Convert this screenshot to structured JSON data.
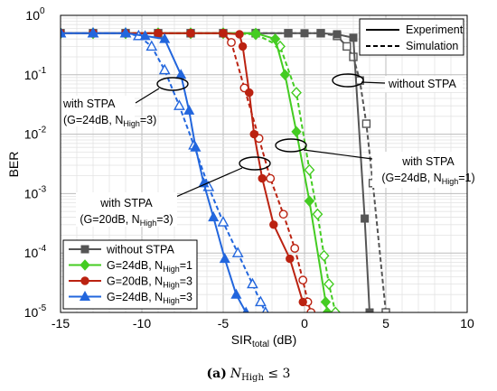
{
  "chart_data": {
    "type": "line",
    "xlabel": "SIR",
    "xlabel_sub": "total",
    "xlabel_unit": " (dB)",
    "ylabel": "BER",
    "xlim": [
      -15,
      10
    ],
    "ylim_log10": [
      -5,
      0
    ],
    "log_y": true,
    "grid": true,
    "x_ticks": [
      "-15",
      "-10",
      "-5",
      "0",
      "5",
      "10"
    ],
    "y_ticks": [
      {
        "base": "10",
        "exp": "0"
      },
      {
        "base": "10",
        "exp": "-1"
      },
      {
        "base": "10",
        "exp": "-2"
      },
      {
        "base": "10",
        "exp": "-3"
      },
      {
        "base": "10",
        "exp": "-4"
      },
      {
        "base": "10",
        "exp": "-5"
      }
    ],
    "style_legend": {
      "position": "top-right",
      "entries": [
        {
          "label": "Experiment",
          "dash": "solid"
        },
        {
          "label": "Simulation",
          "dash": "dashed"
        }
      ]
    },
    "legend_position": "bottom-left",
    "series": [
      {
        "key": "without",
        "color": "#555555",
        "marker": "square",
        "experiment": {
          "x": [
            -15,
            -13,
            -11,
            -9,
            -7,
            -5,
            -3,
            -1,
            0,
            1,
            2,
            3,
            3.7,
            4
          ],
          "y": [
            0.5,
            0.5,
            0.5,
            0.5,
            0.5,
            0.5,
            0.5,
            0.5,
            0.5,
            0.5,
            0.48,
            0.42,
            0.00038,
            1e-05
          ]
        },
        "simulation": {
          "x": [
            -15,
            -13,
            -11,
            -9,
            -7,
            -5,
            -3,
            -1,
            1,
            2,
            2.6,
            3,
            3.4,
            3.8,
            4.2,
            5
          ],
          "y": [
            0.5,
            0.5,
            0.5,
            0.5,
            0.5,
            0.5,
            0.5,
            0.5,
            0.5,
            0.45,
            0.3,
            0.2,
            0.08,
            0.015,
            0.0015,
            1e-05
          ]
        }
      },
      {
        "key": "g24n1",
        "color": "#44cc22",
        "marker": "diamond",
        "experiment": {
          "x": [
            -15,
            -13,
            -11,
            -9,
            -7,
            -5,
            -3,
            -1.8,
            -1.2,
            -0.5,
            0.3,
            1.3,
            1.4
          ],
          "y": [
            0.5,
            0.5,
            0.5,
            0.5,
            0.5,
            0.5,
            0.5,
            0.4,
            0.1,
            0.011,
            0.00075,
            1.5e-05,
            1e-05
          ]
        },
        "simulation": {
          "x": [
            -15,
            -13,
            -11,
            -9,
            -7,
            -5,
            -3,
            -1.5,
            -0.5,
            0.3,
            0.8,
            1.2,
            1.5,
            1.9
          ],
          "y": [
            0.5,
            0.5,
            0.5,
            0.5,
            0.5,
            0.5,
            0.48,
            0.3,
            0.05,
            0.0025,
            0.00045,
            9e-05,
            3e-05,
            1e-05
          ]
        }
      },
      {
        "key": "g20n3",
        "color": "#bb2211",
        "marker": "circle",
        "experiment": {
          "x": [
            -15,
            -13,
            -11,
            -9,
            -7,
            -5,
            -4,
            -3.8,
            -3.4,
            -3.1,
            -2.6,
            -1.9,
            -0.9,
            -0.1
          ],
          "y": [
            0.5,
            0.5,
            0.5,
            0.5,
            0.5,
            0.5,
            0.48,
            0.3,
            0.05,
            0.01,
            0.0018,
            0.0003,
            8e-05,
            1.5e-05
          ]
        },
        "simulation": {
          "x": [
            -15,
            -13,
            -11,
            -9,
            -7,
            -5,
            -4.5,
            -3.7,
            -2.8,
            -2.1,
            -1.3,
            -0.6,
            -0.1,
            0.2,
            0.4
          ],
          "y": [
            0.5,
            0.5,
            0.5,
            0.5,
            0.5,
            0.5,
            0.35,
            0.06,
            0.0085,
            0.0018,
            0.00045,
            0.00012,
            3.5e-05,
            1.5e-05,
            1e-05
          ]
        }
      },
      {
        "key": "g24n3",
        "color": "#2266dd",
        "marker": "triangle",
        "experiment": {
          "x": [
            -15,
            -13,
            -11,
            -9.8,
            -8.6,
            -7.6,
            -7.1,
            -6.7,
            -6.2,
            -5.6,
            -4.9,
            -4.2,
            -3.6
          ],
          "y": [
            0.5,
            0.5,
            0.5,
            0.45,
            0.4,
            0.1,
            0.025,
            0.006,
            0.0015,
            0.0004,
            8e-05,
            2e-05,
            1e-05
          ]
        },
        "simulation": {
          "x": [
            -15,
            -13,
            -11,
            -10.2,
            -9.4,
            -8.6,
            -7.7,
            -6.8,
            -5.9,
            -5,
            -4.1,
            -3.2,
            -2.7,
            -2.4
          ],
          "y": [
            0.5,
            0.5,
            0.5,
            0.45,
            0.3,
            0.12,
            0.03,
            0.0065,
            0.0013,
            0.00033,
            0.0001,
            3e-05,
            1.5e-05,
            1e-05
          ]
        }
      }
    ],
    "legend": [
      {
        "key": "without",
        "label": "without STPA",
        "label_sub": "",
        "label_tail": ""
      },
      {
        "key": "g24n1",
        "label": "G=24dB, N",
        "label_sub": "High",
        "label_tail": "=1"
      },
      {
        "key": "g20n3",
        "label": "G=20dB, N",
        "label_sub": "High",
        "label_tail": "=3"
      },
      {
        "key": "g24n3",
        "label": "G=24dB, N",
        "label_sub": "High",
        "label_tail": "=3"
      }
    ],
    "annotations": [
      {
        "line1": "with STPA",
        "line2": "(G=24dB, N",
        "line2_sub": "High",
        "line2_tail": "=3)"
      },
      {
        "line1": "with STPA",
        "line2": "(G=24dB, N",
        "line2_sub": "High",
        "line2_tail": "=1)"
      },
      {
        "line1": "with STPA",
        "line2": "(G=20dB, N",
        "line2_sub": "High",
        "line2_tail": "=3)"
      },
      {
        "line1": "without STPA"
      }
    ],
    "caption": {
      "prefix": "(a)",
      "text": "N",
      "sub": "High",
      "tail": " ≤ 3"
    }
  }
}
